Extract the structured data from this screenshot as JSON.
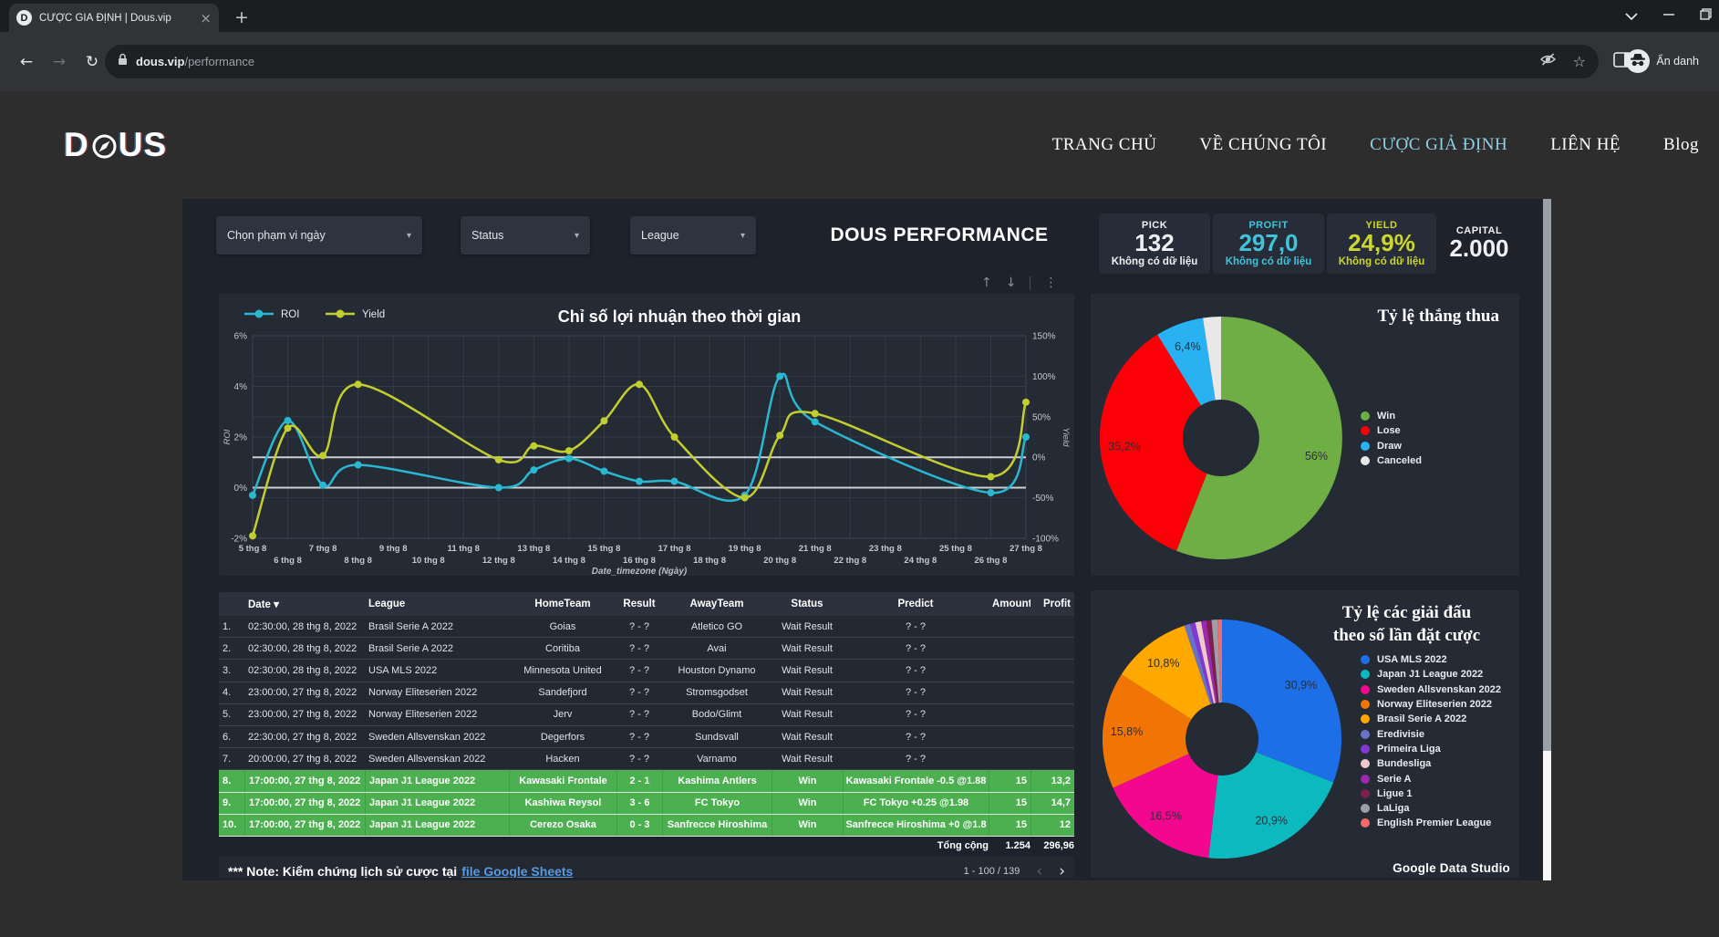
{
  "browser": {
    "tab": {
      "title": "CƯỢC GIẢ ĐỊNH | Dous.vip",
      "favicon_letter": "D"
    },
    "url": {
      "host": "dous.vip",
      "path": "/performance"
    },
    "incognito_label": "Ẩn danh"
  },
  "site_header": {
    "logo_pre": "D",
    "logo_post": "US",
    "nav": [
      {
        "label": "TRANG CHỦ",
        "active": false
      },
      {
        "label": "VỀ CHÚNG TÔI",
        "active": false
      },
      {
        "label": "CƯỢC GIẢ ĐỊNH",
        "active": true
      },
      {
        "label": "LIÊN HỆ",
        "active": false
      },
      {
        "label": "Blog",
        "active": false
      }
    ],
    "active_color": "#8fd0e5"
  },
  "dashboard": {
    "filters": [
      {
        "label": "Chọn phạm vi ngày"
      },
      {
        "label": "Status"
      },
      {
        "label": "League"
      }
    ],
    "title": "DOUS PERFORMANCE",
    "stats": [
      {
        "label": "PICK",
        "value": "132",
        "note": "Không có dữ liệu",
        "color": "#eef0f3"
      },
      {
        "label": "PROFIT",
        "value": "297,0",
        "note": "Không có dữ liệu",
        "color": "#41c4da"
      },
      {
        "label": "YIELD",
        "value": "24,9%",
        "note": "Không có dữ liệu",
        "color": "#ccd62f"
      },
      {
        "label": "CAPITAL",
        "value": "2.000",
        "note": "",
        "color": "#eef0f3"
      }
    ],
    "table": {
      "columns": [
        "",
        "Date",
        "League",
        "HomeTeam",
        "Result",
        "AwayTeam",
        "Status",
        "Predict",
        "Amount",
        "Profit"
      ],
      "sort_indicator": "▾",
      "rows": [
        {
          "n": "1.",
          "cells": [
            "02:30:00, 28 thg 8, 2022",
            "Brasil Serie A 2022",
            "Goias",
            "? - ?",
            "Atletico GO",
            "Wait Result",
            "? - ?",
            "",
            ""
          ],
          "win": false
        },
        {
          "n": "2.",
          "cells": [
            "02:30:00, 28 thg 8, 2022",
            "Brasil Serie A 2022",
            "Coritiba",
            "? - ?",
            "Avai",
            "Wait Result",
            "? - ?",
            "",
            ""
          ],
          "win": false
        },
        {
          "n": "3.",
          "cells": [
            "02:30:00, 28 thg 8, 2022",
            "USA MLS 2022",
            "Minnesota United",
            "? - ?",
            "Houston Dynamo",
            "Wait Result",
            "? - ?",
            "",
            ""
          ],
          "win": false
        },
        {
          "n": "4.",
          "cells": [
            "23:00:00, 27 thg 8, 2022",
            "Norway Eliteserien 2022",
            "Sandefjord",
            "? - ?",
            "Stromsgodset",
            "Wait Result",
            "? - ?",
            "",
            ""
          ],
          "win": false
        },
        {
          "n": "5.",
          "cells": [
            "23:00:00, 27 thg 8, 2022",
            "Norway Eliteserien 2022",
            "Jerv",
            "? - ?",
            "Bodo/Glimt",
            "Wait Result",
            "? - ?",
            "",
            ""
          ],
          "win": false
        },
        {
          "n": "6.",
          "cells": [
            "22:30:00, 27 thg 8, 2022",
            "Sweden Allsvenskan 2022",
            "Degerfors",
            "? - ?",
            "Sundsvall",
            "Wait Result",
            "? - ?",
            "",
            ""
          ],
          "win": false
        },
        {
          "n": "7.",
          "cells": [
            "20:00:00, 27 thg 8, 2022",
            "Sweden Allsvenskan 2022",
            "Hacken",
            "? - ?",
            "Varnamo",
            "Wait Result",
            "? - ?",
            "",
            ""
          ],
          "win": false
        },
        {
          "n": "8.",
          "cells": [
            "17:00:00, 27 thg 8, 2022",
            "Japan J1 League 2022",
            "Kawasaki Frontale",
            "2 - 1",
            "Kashima Antlers",
            "Win",
            "Kawasaki Frontale -0.5 @1.88",
            "15",
            "13,2"
          ],
          "win": true
        },
        {
          "n": "9.",
          "cells": [
            "17:00:00, 27 thg 8, 2022",
            "Japan J1 League 2022",
            "Kashiwa Reysol",
            "3 - 6",
            "FC Tokyo",
            "Win",
            "FC Tokyo +0.25 @1.98",
            "15",
            "14,7"
          ],
          "win": true
        },
        {
          "n": "10.",
          "cells": [
            "17:00:00, 27 thg 8, 2022",
            "Japan J1 League 2022",
            "Cerezo Osaka",
            "0 - 3",
            "Sanfrecce Hiroshima",
            "Win",
            "Sanfrecce Hiroshima +0 @1.8",
            "15",
            "12"
          ],
          "win": true
        }
      ],
      "total": {
        "label": "Tổng cộng",
        "amount": "1.254",
        "profit": "296,96"
      },
      "note_prefix": "*** Note: Kiểm chứng lịch sử cược tại",
      "note_link": "file Google Sheets",
      "pagination": {
        "range": "1 - 100 / 139",
        "prev": "‹",
        "next": "›"
      }
    },
    "branding": "Google Data Studio"
  },
  "chart_data": [
    {
      "type": "line",
      "title": "Chỉ số lợi nhuận theo thời gian",
      "x_axis_label": "Date_timezone (Ngày)",
      "x_start_day": 5,
      "x_tick_labels": [
        "5 thg 8",
        "6 thg 8",
        "7 thg 8",
        "8 thg 8",
        "9 thg 8",
        "10 thg 8",
        "11 thg 8",
        "12 thg 8",
        "13 thg 8",
        "14 thg 8",
        "15 thg 8",
        "16 thg 8",
        "17 thg 8",
        "18 thg 8",
        "19 thg 8",
        "20 thg 8",
        "21 thg 8",
        "22 thg 8",
        "23 thg 8",
        "24 thg 8",
        "25 thg 8",
        "26 thg 8",
        "27 thg 8"
      ],
      "left_axis": {
        "label": "ROI",
        "min": -2,
        "max": 6,
        "ticks": [
          6,
          4,
          2,
          0,
          -2
        ],
        "tick_suffix": "%"
      },
      "right_axis": {
        "label": "Yield",
        "min": -100,
        "max": 150,
        "ticks": [
          150,
          100,
          50,
          0,
          -50,
          -100
        ],
        "tick_suffix": "%"
      },
      "reference_lines": [
        {
          "axis": "left",
          "value": 0
        },
        {
          "axis": "right",
          "value": 0
        }
      ],
      "series": [
        {
          "name": "ROI",
          "axis": "left",
          "color": "#2ab7d0",
          "points": [
            [
              5,
              -0.3
            ],
            [
              6,
              2.65
            ],
            [
              7,
              0.1
            ],
            [
              8,
              0.9
            ],
            [
              12,
              0
            ],
            [
              13,
              0.7
            ],
            [
              14,
              1.15
            ],
            [
              15,
              0.65
            ],
            [
              16,
              0.25
            ],
            [
              17,
              0.25
            ],
            [
              19,
              -0.3
            ],
            [
              20,
              4.4
            ],
            [
              21,
              2.6
            ],
            [
              26,
              -0.2
            ],
            [
              27,
              2.0
            ]
          ]
        },
        {
          "name": "Yield",
          "axis": "right",
          "color": "#c2ce2e",
          "points": [
            [
              5,
              -97
            ],
            [
              6,
              36
            ],
            [
              7,
              2
            ],
            [
              8,
              90
            ],
            [
              12,
              -3
            ],
            [
              13,
              14
            ],
            [
              14,
              8
            ],
            [
              15,
              45
            ],
            [
              16,
              90
            ],
            [
              17,
              25
            ],
            [
              19,
              -50
            ],
            [
              20,
              27
            ],
            [
              21,
              54
            ],
            [
              26,
              -24
            ],
            [
              27,
              68
            ]
          ]
        }
      ]
    },
    {
      "type": "pie",
      "title": "Tỷ lệ thắng thua",
      "slices": [
        {
          "name": "Win",
          "value": 56,
          "label": "56%",
          "color": "#6fae44"
        },
        {
          "name": "Lose",
          "value": 35.2,
          "label": "35,2%",
          "color": "#fb0007"
        },
        {
          "name": "Draw",
          "value": 6.4,
          "label": "6,4%",
          "color": "#29b2f2"
        },
        {
          "name": "Canceled",
          "value": 2.4,
          "label": "",
          "color": "#e8e8e8"
        }
      ]
    },
    {
      "type": "pie",
      "title_lines": [
        "Tỷ lệ các giải đấu",
        "theo số lần đặt cược"
      ],
      "slices": [
        {
          "name": "USA MLS 2022",
          "value": 30.9,
          "label": "30,9%",
          "color": "#1d6fe8"
        },
        {
          "name": "Japan J1 League 2022",
          "value": 20.9,
          "label": "20,9%",
          "color": "#0cb9be"
        },
        {
          "name": "Sweden Allsvenskan 2022",
          "value": 16.5,
          "label": "16,5%",
          "color": "#f2078e"
        },
        {
          "name": "Norway Eliteserien 2022",
          "value": 15.8,
          "label": "15,8%",
          "color": "#f07505"
        },
        {
          "name": "Brasil Serie A 2022",
          "value": 10.8,
          "label": "10,8%",
          "color": "#ffa800"
        },
        {
          "name": "Eredivisie",
          "value": 0.8,
          "label": "",
          "color": "#6673c8"
        },
        {
          "name": "Primeira Liga",
          "value": 0.7,
          "label": "",
          "color": "#8038d0"
        },
        {
          "name": "Bundesliga",
          "value": 0.8,
          "label": "",
          "color": "#efc8c8"
        },
        {
          "name": "Serie A",
          "value": 0.7,
          "label": "",
          "color": "#9c27b0"
        },
        {
          "name": "Ligue 1",
          "value": 0.7,
          "label": "",
          "color": "#7d1f4d"
        },
        {
          "name": "LaLiga",
          "value": 0.8,
          "label": "",
          "color": "#9aa0a6"
        },
        {
          "name": "English Premier League",
          "value": 0.6,
          "label": "",
          "color": "#f26a6a"
        }
      ]
    }
  ]
}
